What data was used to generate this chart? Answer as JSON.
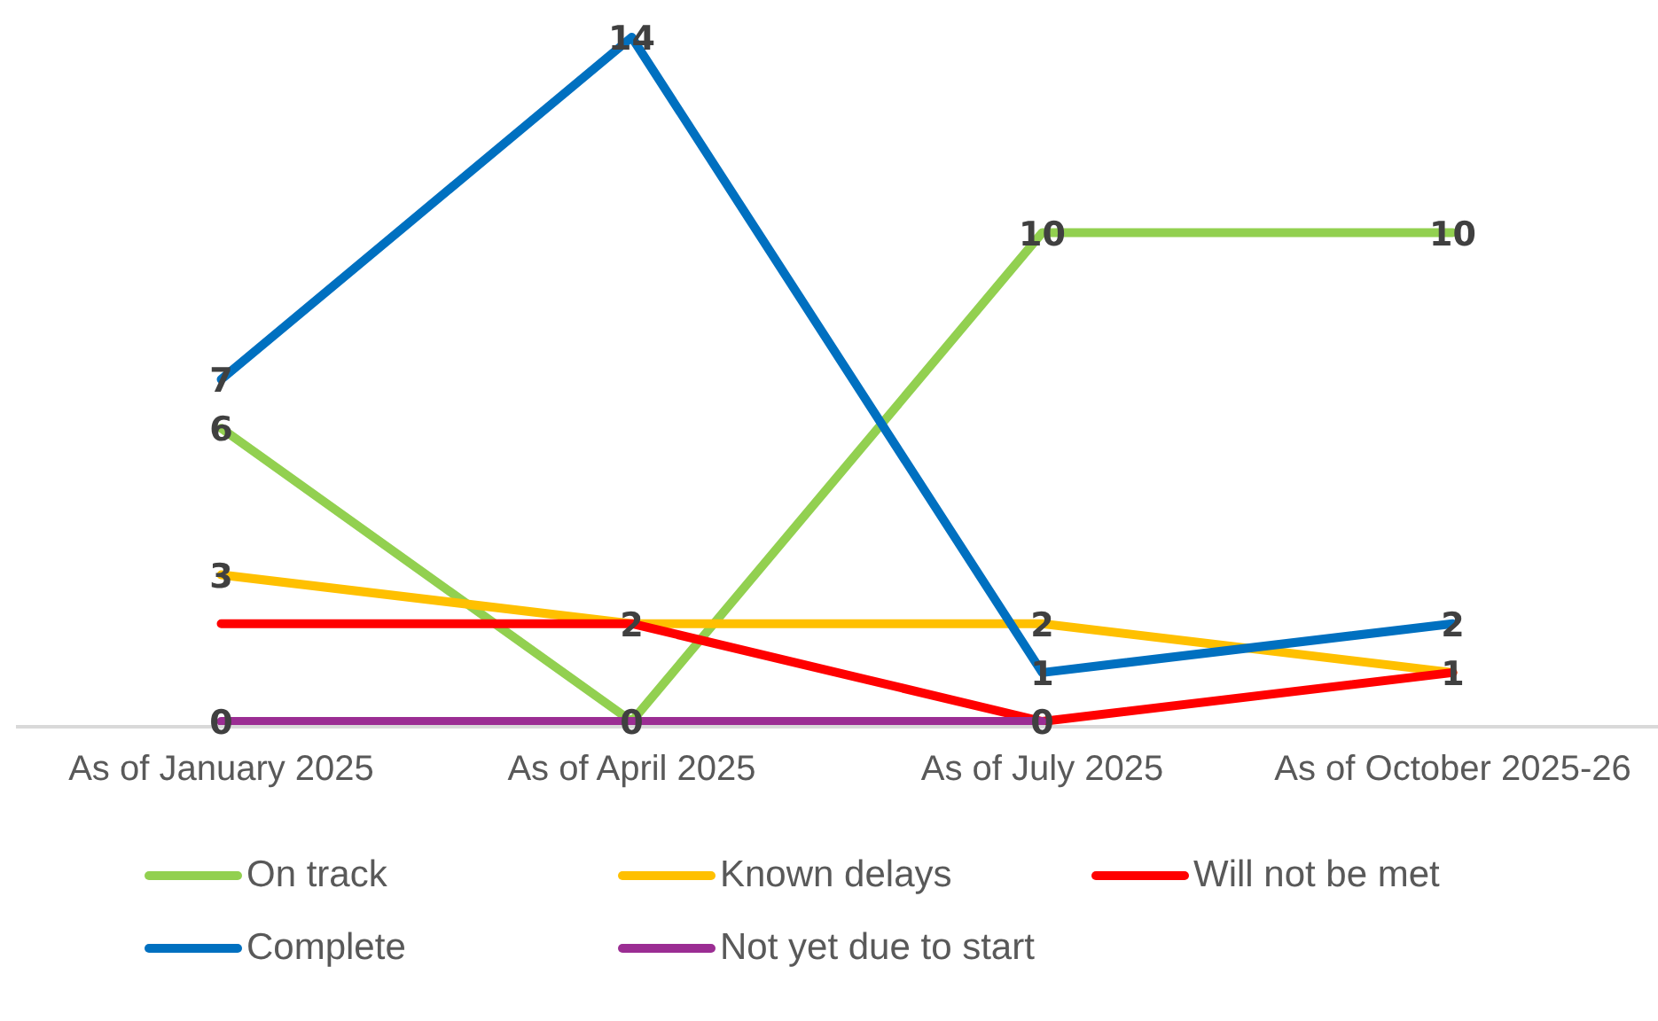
{
  "chart_data": {
    "type": "line",
    "categories": [
      "As of January 2025",
      "As of April 2025",
      "As of July 2025",
      "As of October 2025-26"
    ],
    "series": [
      {
        "name": "On track",
        "color": "#92d050",
        "values": [
          6,
          0,
          10,
          10
        ],
        "value_labels": [
          "6",
          "0",
          "10",
          "10"
        ]
      },
      {
        "name": "Known delays",
        "color": "#ffc000",
        "values": [
          3,
          2,
          2,
          1
        ],
        "value_labels": [
          "3",
          "2",
          "2",
          null
        ]
      },
      {
        "name": "Will not be met",
        "color": "#ff0000",
        "values": [
          2,
          2,
          0,
          1
        ],
        "value_labels": [
          null,
          null,
          "0",
          "1"
        ]
      },
      {
        "name": "Complete",
        "color": "#0070c0",
        "values": [
          7,
          14,
          1,
          2
        ],
        "value_labels": [
          "7",
          "14",
          "1",
          "2"
        ]
      },
      {
        "name": "Not yet due to start",
        "color": "#9b2d93",
        "values": [
          0,
          0,
          0,
          null
        ],
        "value_labels": [
          "0",
          null,
          null,
          null
        ]
      }
    ],
    "tick_labels": "x",
    "grid": false,
    "legend": "bottom",
    "line_style": "solid"
  }
}
